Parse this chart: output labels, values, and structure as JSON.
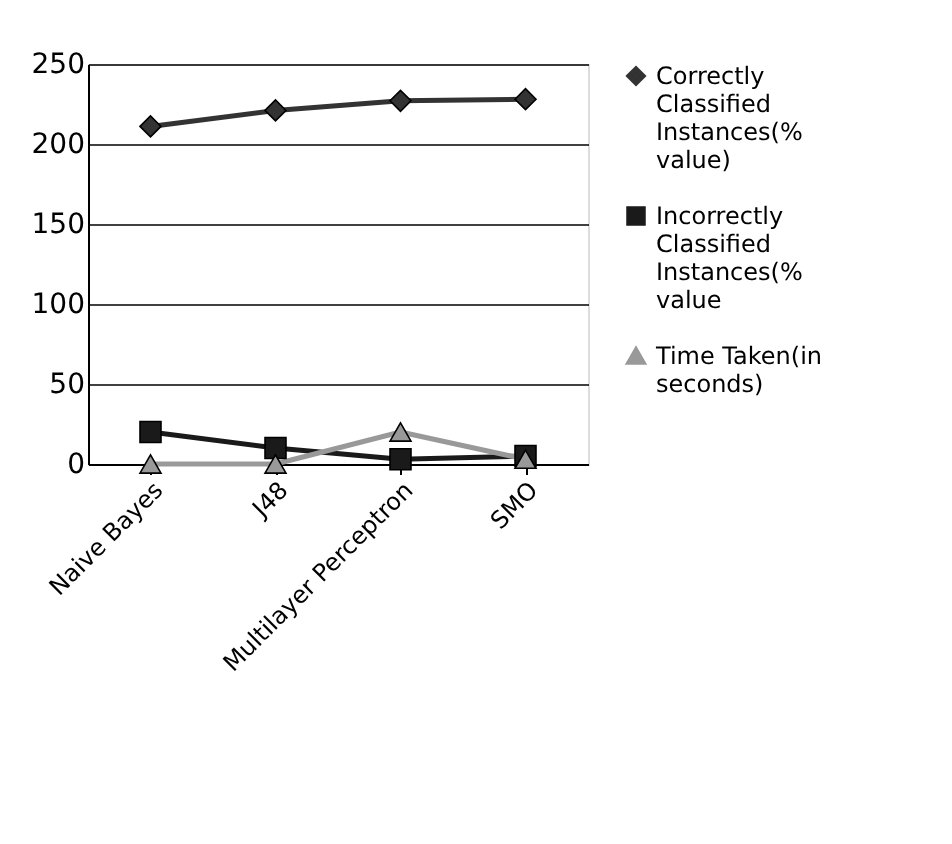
{
  "chart_data": {
    "type": "line",
    "categories": [
      "Naive Bayes",
      "J48",
      "Multilayer Perceptron",
      "SMO"
    ],
    "series": [
      {
        "name": "Correctly Classified Instances(% value)",
        "color": "#333333",
        "marker": "diamond",
        "values": [
          211,
          221,
          227,
          228
        ]
      },
      {
        "name": "Incorrectly Classified Instances(% value",
        "color": "#1a1a1a",
        "marker": "square",
        "values": [
          20,
          10,
          3,
          5
        ]
      },
      {
        "name": "Time Taken(in seconds)",
        "color": "#999999",
        "marker": "triangle",
        "values": [
          0,
          0,
          20,
          3
        ]
      }
    ],
    "ylim": [
      0,
      250
    ],
    "yticks": [
      0,
      50,
      100,
      150,
      200,
      250
    ],
    "grid": "y",
    "legend": "right"
  }
}
